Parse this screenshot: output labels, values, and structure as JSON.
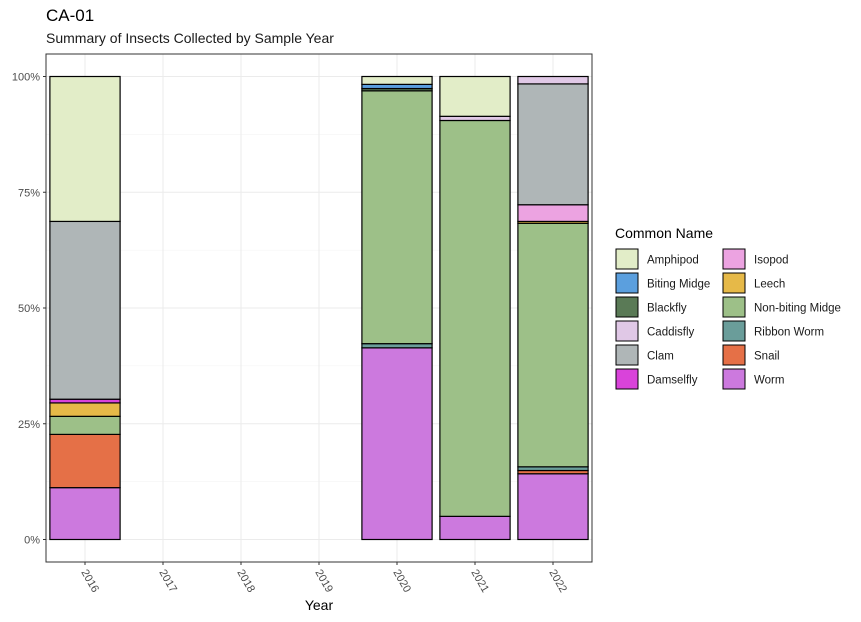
{
  "chart_data": {
    "type": "bar",
    "stacked": true,
    "normalized": true,
    "title": "CA-01",
    "subtitle": "Summary of Insects Collected by Sample Year",
    "xlabel": "Year",
    "ylabel": "",
    "ylim": [
      0,
      1
    ],
    "y_ticks": [
      {
        "value": 0,
        "label": "0%"
      },
      {
        "value": 0.25,
        "label": "25%"
      },
      {
        "value": 0.5,
        "label": "50%"
      },
      {
        "value": 0.75,
        "label": "75%"
      },
      {
        "value": 1,
        "label": "100%"
      }
    ],
    "categories": [
      "2016",
      "2017",
      "2018",
      "2019",
      "2020",
      "2021",
      "2022"
    ],
    "grid": true,
    "legend_position": "right",
    "legend_title": "Common Name",
    "series": [
      {
        "name": "Amphipod",
        "color": "#e2edc8",
        "values": [
          0.313,
          0,
          0,
          0,
          0.017,
          0.086,
          0
        ]
      },
      {
        "name": "Biting Midge",
        "color": "#5b9fde",
        "values": [
          0,
          0,
          0,
          0,
          0.009,
          0,
          0
        ]
      },
      {
        "name": "Blackfly",
        "color": "#5a7a56",
        "values": [
          0,
          0,
          0,
          0,
          0.005,
          0,
          0
        ]
      },
      {
        "name": "Caddisfly",
        "color": "#e0c8e6",
        "values": [
          0,
          0,
          0,
          0,
          0,
          0.009,
          0.016
        ]
      },
      {
        "name": "Clam",
        "color": "#afb6b7",
        "values": [
          0.384,
          0,
          0,
          0,
          0,
          0,
          0.261
        ]
      },
      {
        "name": "Damselfly",
        "color": "#d943da",
        "values": [
          0.008,
          0,
          0,
          0,
          0,
          0,
          0
        ]
      },
      {
        "name": "Isopod",
        "color": "#eca3e1",
        "values": [
          0,
          0,
          0,
          0,
          0,
          0,
          0.036
        ]
      },
      {
        "name": "Leech",
        "color": "#e6b948",
        "values": [
          0.029,
          0,
          0,
          0,
          0,
          0,
          0.004
        ]
      },
      {
        "name": "Non-biting Midge",
        "color": "#9dc088",
        "values": [
          0.039,
          0,
          0,
          0,
          0.546,
          0.855,
          0.526
        ]
      },
      {
        "name": "Ribbon Worm",
        "color": "#6a9d9a",
        "values": [
          0,
          0,
          0,
          0,
          0.009,
          0,
          0.008
        ]
      },
      {
        "name": "Snail",
        "color": "#e57047",
        "values": [
          0.115,
          0,
          0,
          0,
          0,
          0,
          0.007
        ]
      },
      {
        "name": "Worm",
        "color": "#cc79de",
        "values": [
          0.112,
          0,
          0,
          0,
          0.414,
          0.05,
          0.142
        ]
      }
    ]
  }
}
